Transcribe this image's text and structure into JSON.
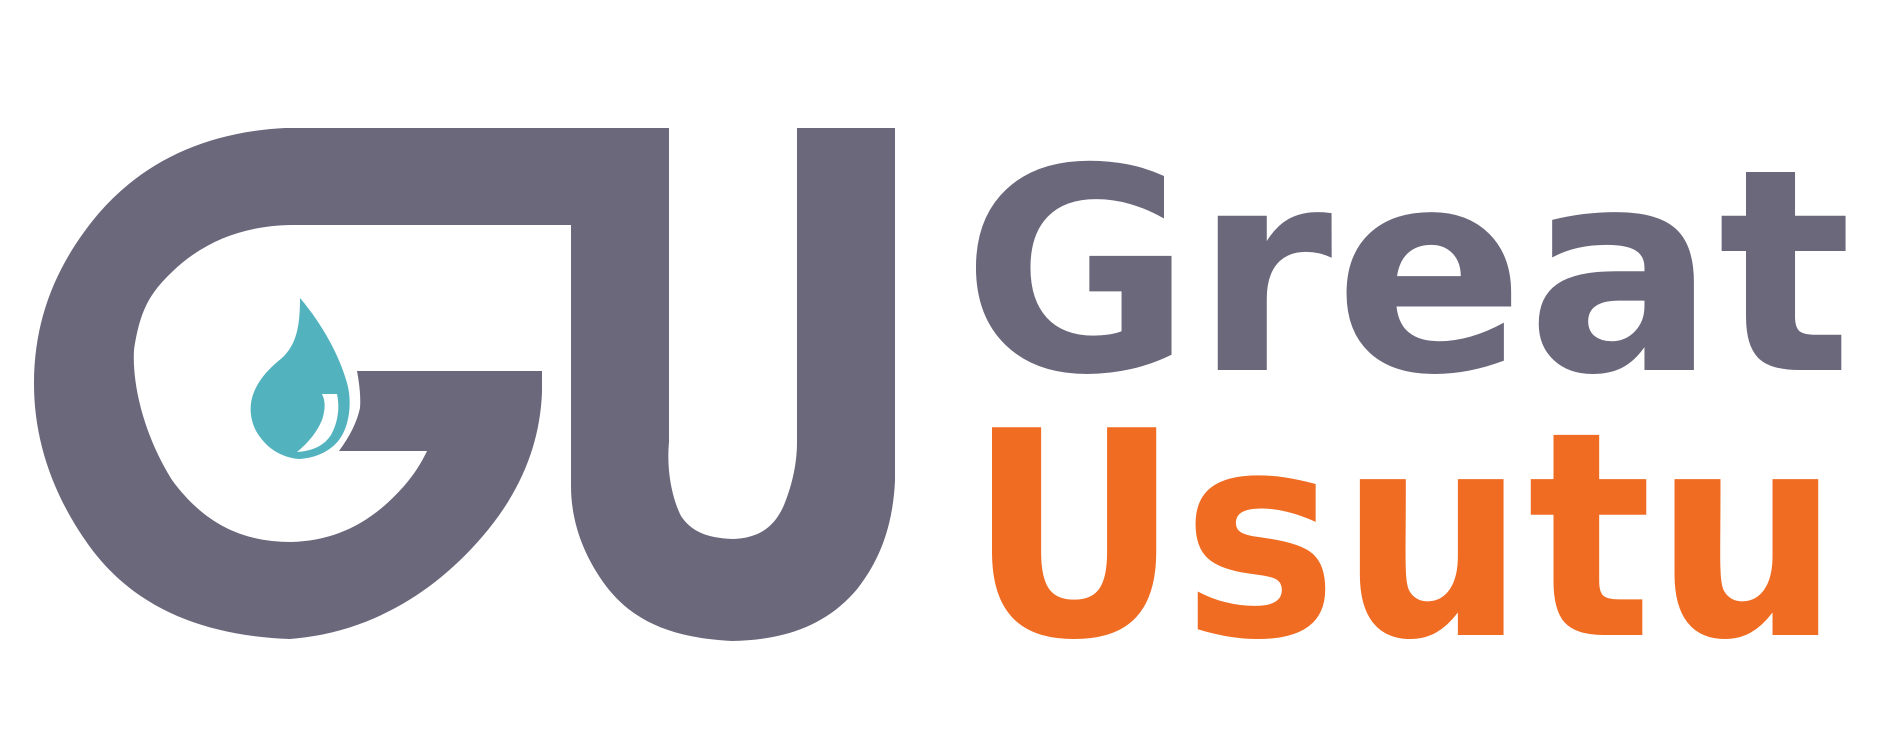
{
  "logo": {
    "monogram": "GU",
    "line1": "Great",
    "line2": "Usutu"
  },
  "colors": {
    "background": "#ffffff",
    "primary_gray": "#6b687c",
    "accent_orange": "#f06c22",
    "drop_teal": "#52b3bf"
  },
  "icons": {
    "drop": "water-drop-icon"
  }
}
